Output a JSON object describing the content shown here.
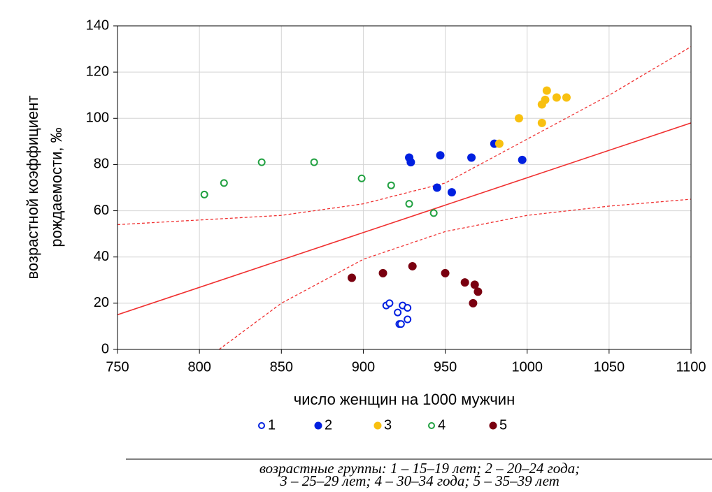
{
  "chart_data": {
    "type": "scatter",
    "xlabel": "число женщин на 1000 мужчин",
    "ylabel": [
      "возрастной коэффициент",
      "рождаемости, ‰"
    ],
    "xlim": [
      750,
      1100
    ],
    "ylim": [
      0,
      140
    ],
    "xticks": [
      750,
      800,
      850,
      900,
      950,
      1000,
      1050,
      1100
    ],
    "yticks": [
      0,
      20,
      40,
      60,
      80,
      100,
      120,
      140
    ],
    "grid": true,
    "series": [
      {
        "name": "1",
        "color": "#0020e0",
        "marker": "open",
        "x": [
          914,
          916,
          924,
          927,
          921,
          927,
          922,
          923
        ],
        "values": [
          19,
          20,
          19,
          18,
          16,
          13,
          11,
          11
        ]
      },
      {
        "name": "2",
        "color": "#0020e0",
        "marker": "filled",
        "x": [
          928,
          929,
          947,
          966,
          980,
          997,
          945,
          954
        ],
        "values": [
          83,
          81,
          84,
          83,
          89,
          82,
          70,
          68
        ]
      },
      {
        "name": "3",
        "color": "#f8c010",
        "marker": "filled",
        "x": [
          983,
          995,
          1009,
          1009,
          1011,
          1012,
          1018,
          1024
        ],
        "values": [
          89,
          100,
          98,
          106,
          108,
          112,
          109,
          109
        ]
      },
      {
        "name": "4",
        "color": "#20a040",
        "marker": "open",
        "x": [
          803,
          815,
          838,
          870,
          899,
          917,
          928,
          943
        ],
        "values": [
          67,
          72,
          81,
          81,
          74,
          71,
          63,
          59
        ]
      },
      {
        "name": "5",
        "color": "#7a0010",
        "marker": "filled",
        "x": [
          893,
          912,
          930,
          950,
          962,
          968,
          970,
          967
        ],
        "values": [
          31,
          33,
          36,
          33,
          29,
          28,
          25,
          20
        ]
      }
    ],
    "lines": [
      {
        "style": "solid",
        "color": "#f03030",
        "x": [
          750,
          1100
        ],
        "values": [
          15,
          98
        ]
      },
      {
        "style": "dashed",
        "color": "#f03030",
        "x": [
          750,
          800,
          850,
          900,
          950,
          1000,
          1050,
          1100
        ],
        "values": [
          54,
          56,
          58,
          63,
          72,
          91,
          110,
          131
        ]
      },
      {
        "style": "dashed",
        "color": "#f03030",
        "x": [
          812,
          850,
          900,
          950,
          1000,
          1050,
          1100
        ],
        "values": [
          0,
          20,
          39,
          51,
          58,
          62,
          65
        ]
      }
    ]
  },
  "caption": [
    "возрастные группы: 1 – 15–19 лет; 2 – 20–24 года;",
    "3 – 25–29 лет; 4 – 30–34 года; 5 – 35–39 лет"
  ]
}
